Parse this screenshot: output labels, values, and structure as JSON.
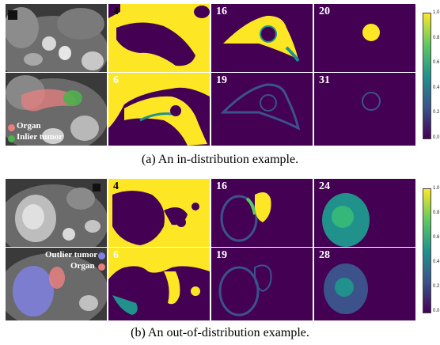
{
  "figure": {
    "example_a": {
      "caption": "(a) An in-distribution example.",
      "labels": [
        "4",
        "16",
        "20",
        "6",
        "19",
        "31"
      ],
      "legend": {
        "organ": "Organ",
        "inlier": "Inlier tumor"
      }
    },
    "example_b": {
      "caption": "(b) An out-of-distribution example.",
      "labels": [
        "4",
        "16",
        "24",
        "6",
        "19",
        "28"
      ],
      "legend": {
        "outlier": "Outlier tumor",
        "organ": "Organ"
      }
    },
    "colorbar": {
      "ticks": [
        "1.0",
        "0.8",
        "0.6",
        "0.4",
        "0.2",
        "0.0"
      ]
    },
    "colors": {
      "organ": "#e88080",
      "inlier": "#4fb04f",
      "outlier": "#8080e0",
      "low": "#440154",
      "high": "#fde725"
    }
  }
}
